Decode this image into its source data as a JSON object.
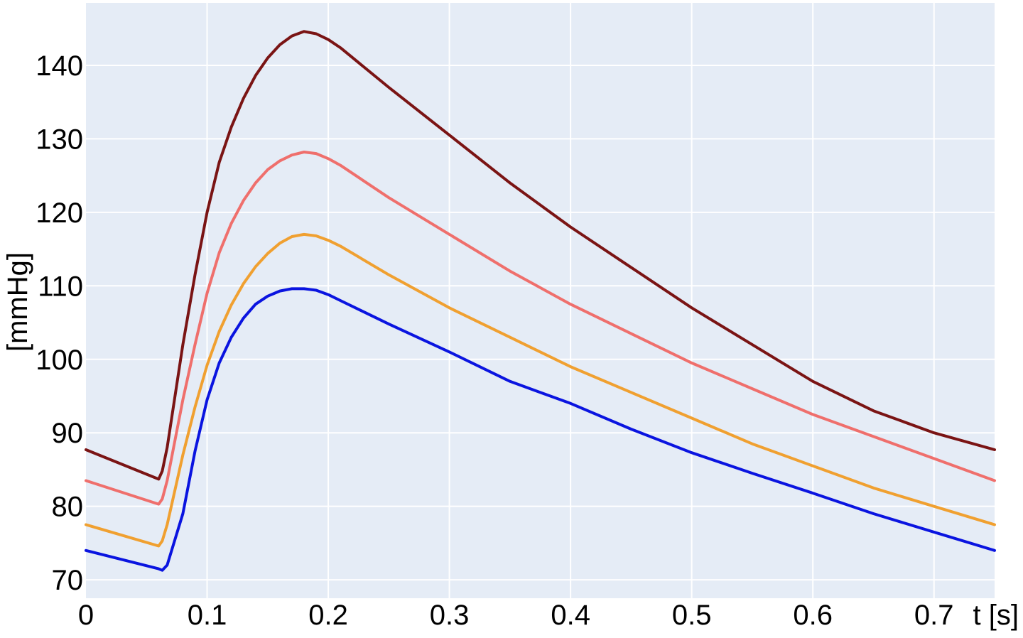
{
  "chart_data": {
    "type": "line",
    "xlabel": "t [s]",
    "ylabel": "[mmHg]",
    "xlim": [
      0,
      0.75
    ],
    "ylim": [
      67.5,
      148.5
    ],
    "x_ticks": [
      0,
      0.1,
      0.2,
      0.3,
      0.4,
      0.5,
      0.6,
      0.7
    ],
    "x_tick_labels": [
      "0",
      "0.1",
      "0.2",
      "0.3",
      "0.4",
      "0.5",
      "0.6",
      "0.7"
    ],
    "y_ticks": [
      70,
      80,
      90,
      100,
      110,
      120,
      130,
      140
    ],
    "y_tick_labels": [
      "70",
      "80",
      "90",
      "100",
      "110",
      "120",
      "130",
      "140"
    ],
    "grid": true,
    "background": "#e5ecf6",
    "series": [
      {
        "color": "#7a1414",
        "x": [
          0,
          0.06,
          0.063,
          0.067,
          0.08,
          0.09,
          0.1,
          0.11,
          0.12,
          0.13,
          0.14,
          0.15,
          0.16,
          0.17,
          0.18,
          0.19,
          0.2,
          0.21,
          0.25,
          0.3,
          0.35,
          0.4,
          0.45,
          0.5,
          0.55,
          0.6,
          0.65,
          0.7,
          0.75
        ],
        "y": [
          87.7,
          83.7,
          84.8,
          88.0,
          102.0,
          111.5,
          120.0,
          126.8,
          131.6,
          135.5,
          138.6,
          141.0,
          142.8,
          144.0,
          144.6,
          144.3,
          143.5,
          142.4,
          137.0,
          130.5,
          124.0,
          118.0,
          112.5,
          107.0,
          102.0,
          97.0,
          93.0,
          90.0,
          87.7
        ]
      },
      {
        "color": "#ef6f6c",
        "x": [
          0,
          0.06,
          0.063,
          0.067,
          0.08,
          0.09,
          0.1,
          0.11,
          0.12,
          0.13,
          0.14,
          0.15,
          0.16,
          0.17,
          0.18,
          0.19,
          0.2,
          0.21,
          0.25,
          0.3,
          0.35,
          0.4,
          0.45,
          0.5,
          0.55,
          0.6,
          0.65,
          0.7,
          0.75
        ],
        "y": [
          83.5,
          80.3,
          81.0,
          83.5,
          94.5,
          102.0,
          109.0,
          114.5,
          118.5,
          121.6,
          124.0,
          125.8,
          127.0,
          127.8,
          128.2,
          128.0,
          127.3,
          126.4,
          122.0,
          117.0,
          112.0,
          107.5,
          103.5,
          99.5,
          96.0,
          92.5,
          89.5,
          86.5,
          83.5
        ]
      },
      {
        "color": "#f0a030",
        "x": [
          0,
          0.06,
          0.063,
          0.067,
          0.08,
          0.09,
          0.1,
          0.11,
          0.12,
          0.13,
          0.14,
          0.15,
          0.16,
          0.17,
          0.18,
          0.19,
          0.2,
          0.21,
          0.25,
          0.3,
          0.35,
          0.4,
          0.45,
          0.5,
          0.55,
          0.6,
          0.65,
          0.7,
          0.75
        ],
        "y": [
          77.5,
          74.6,
          75.3,
          77.5,
          87.0,
          93.5,
          99.2,
          103.8,
          107.4,
          110.3,
          112.6,
          114.4,
          115.8,
          116.7,
          117.0,
          116.8,
          116.2,
          115.4,
          111.5,
          107.0,
          103.0,
          99.0,
          95.5,
          92.0,
          88.5,
          85.5,
          82.5,
          80.0,
          77.5
        ]
      },
      {
        "color": "#0a14e0",
        "x": [
          0,
          0.06,
          0.063,
          0.067,
          0.08,
          0.09,
          0.1,
          0.11,
          0.12,
          0.13,
          0.14,
          0.15,
          0.16,
          0.17,
          0.18,
          0.19,
          0.2,
          0.21,
          0.25,
          0.3,
          0.35,
          0.4,
          0.45,
          0.5,
          0.55,
          0.6,
          0.65,
          0.7,
          0.75
        ],
        "y": [
          74.0,
          71.5,
          71.3,
          72.0,
          79.0,
          87.5,
          94.5,
          99.5,
          103.0,
          105.6,
          107.5,
          108.6,
          109.3,
          109.6,
          109.6,
          109.4,
          108.8,
          108.0,
          104.8,
          101.0,
          97.0,
          94.0,
          90.5,
          87.3,
          84.5,
          81.8,
          79.0,
          76.5,
          74.0
        ]
      }
    ]
  }
}
